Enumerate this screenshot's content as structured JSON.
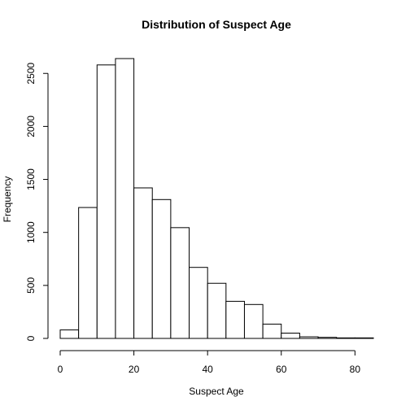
{
  "chart_data": {
    "type": "bar",
    "title": "Distribution of Suspect Age",
    "xlabel": "Suspect Age",
    "ylabel": "Frequency",
    "bin_edges": [
      0,
      5,
      10,
      15,
      20,
      25,
      30,
      35,
      40,
      45,
      50,
      55,
      60,
      65,
      70,
      75,
      80,
      85
    ],
    "values": [
      80,
      1235,
      2580,
      2640,
      1420,
      1310,
      1045,
      670,
      520,
      350,
      320,
      135,
      50,
      15,
      10,
      5,
      5
    ],
    "xlim": [
      0,
      85
    ],
    "ylim": [
      0,
      2640
    ],
    "x_ticks": [
      0,
      20,
      40,
      60,
      80
    ],
    "y_ticks": [
      0,
      500,
      1000,
      1500,
      2000,
      2500
    ],
    "grid": false,
    "legend": "none"
  }
}
